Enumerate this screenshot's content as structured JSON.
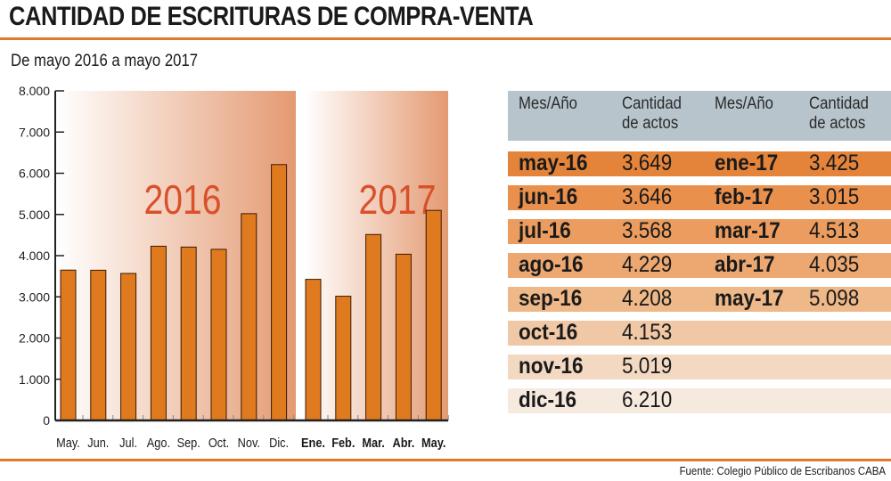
{
  "title": "CANTIDAD DE ESCRITURAS DE COMPRA-VENTA",
  "subtitle": "De mayo 2016 a mayo 2017",
  "source": "Fuente: Colegio Público de Escribanos CABA",
  "colors": {
    "bar": "#e07a1f",
    "accent": "#e07a2a",
    "year_label": "#d9502a",
    "header": "#b7c4cc"
  },
  "chart_data": {
    "type": "bar",
    "title": "CANTIDAD DE ESCRITURAS DE COMPRA-VENTA",
    "subtitle": "De mayo 2016 a mayo 2017",
    "ylim": [
      0,
      8000
    ],
    "yticks": [
      "0",
      "1.000",
      "2.000",
      "3.000",
      "4.000",
      "5.000",
      "6.000",
      "7.000",
      "8.000"
    ],
    "groups": [
      {
        "label": "2016",
        "categories": [
          "May.",
          "Jun.",
          "Jul.",
          "Ago.",
          "Sep.",
          "Oct.",
          "Nov.",
          "Dic."
        ],
        "values": [
          3649,
          3646,
          3568,
          4229,
          4208,
          4153,
          5019,
          6210
        ]
      },
      {
        "label": "2017",
        "categories": [
          "Ene.",
          "Feb.",
          "Mar.",
          "Abr.",
          "May."
        ],
        "values": [
          3425,
          3015,
          4513,
          4035,
          5098
        ]
      }
    ],
    "grid": false
  },
  "table": {
    "headers": [
      "Mes/Año",
      "Cantidad de actos",
      "Mes/Año",
      "Cantidad de actos"
    ],
    "left": [
      [
        "may-16",
        "3.649"
      ],
      [
        "jun-16",
        "3.646"
      ],
      [
        "jul-16",
        "3.568"
      ],
      [
        "ago-16",
        "4.229"
      ],
      [
        "sep-16",
        "4.208"
      ],
      [
        "oct-16",
        "4.153"
      ],
      [
        "nov-16",
        "5.019"
      ],
      [
        "dic-16",
        "6.210"
      ]
    ],
    "right": [
      [
        "ene-17",
        "3.425"
      ],
      [
        "feb-17",
        "3.015"
      ],
      [
        "mar-17",
        "4.513"
      ],
      [
        "abr-17",
        "4.035"
      ],
      [
        "may-17",
        "5.098"
      ]
    ],
    "row_colors": [
      "#e4843a",
      "#e8904c",
      "#eb9c5e",
      "#eda872",
      "#efb888",
      "#f1c8a5",
      "#f3d8c2",
      "#f6e9de"
    ]
  }
}
